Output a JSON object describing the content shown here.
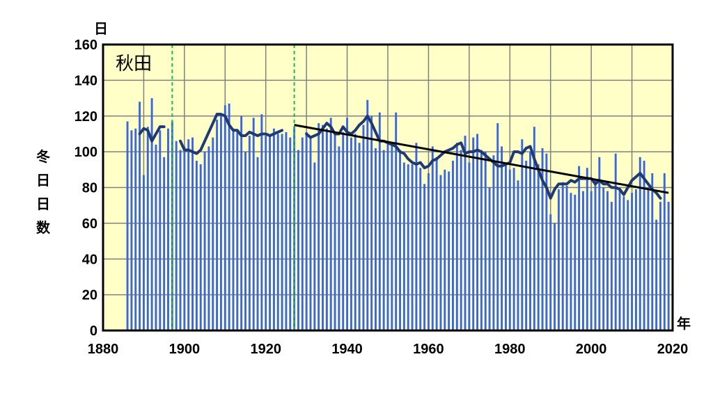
{
  "chart_data": {
    "type": "bar",
    "title": "",
    "station_label": "秋田",
    "y_unit_label": "日",
    "ylabel": "冬日日数",
    "xlabel": "年",
    "xlim": [
      1880,
      2020
    ],
    "ylim": [
      0,
      160
    ],
    "x_ticks": [
      "1880",
      "1900",
      "1920",
      "1940",
      "1960",
      "1980",
      "2000",
      "2020"
    ],
    "y_ticks": [
      "0",
      "20",
      "40",
      "60",
      "80",
      "100",
      "120",
      "140",
      "160"
    ],
    "grid": true,
    "colors": {
      "plot_background": "#FFFFC8",
      "grid": "#808080",
      "bars": "#3A67E0",
      "moving_average": "#1F3A73",
      "trend": "#000000",
      "station_change_lines": "#1DB954"
    },
    "station_change_years": [
      1897,
      1927
    ],
    "series": [
      {
        "type": "bar",
        "x": [
          1886,
          1887,
          1888,
          1889,
          1890,
          1891,
          1892,
          1893,
          1894,
          1895,
          1896,
          1897,
          1898,
          1899,
          1900,
          1901,
          1902,
          1903,
          1904,
          1905,
          1906,
          1907,
          1908,
          1909,
          1910,
          1911,
          1912,
          1913,
          1914,
          1915,
          1916,
          1917,
          1918,
          1919,
          1920,
          1921,
          1922,
          1923,
          1924,
          1925,
          1926,
          1927,
          1928,
          1929,
          1930,
          1931,
          1932,
          1933,
          1934,
          1935,
          1936,
          1937,
          1938,
          1939,
          1940,
          1941,
          1942,
          1943,
          1944,
          1945,
          1946,
          1947,
          1948,
          1949,
          1950,
          1951,
          1952,
          1953,
          1954,
          1955,
          1956,
          1957,
          1958,
          1959,
          1960,
          1961,
          1962,
          1963,
          1964,
          1965,
          1966,
          1967,
          1968,
          1969,
          1970,
          1971,
          1972,
          1973,
          1974,
          1975,
          1976,
          1977,
          1978,
          1979,
          1980,
          1981,
          1982,
          1983,
          1984,
          1985,
          1986,
          1987,
          1988,
          1989,
          1990,
          1991,
          1992,
          1993,
          1994,
          1995,
          1996,
          1997,
          1998,
          1999,
          2000,
          2001,
          2002,
          2003,
          2004,
          2005,
          2006,
          2007,
          2008,
          2009,
          2010,
          2011,
          2012,
          2013,
          2014,
          2015,
          2016,
          2017,
          2018,
          2019
        ],
        "values": [
          117,
          112,
          113,
          128,
          87,
          114,
          130,
          104,
          112,
          97,
          113,
          117,
          106,
          101,
          103,
          107,
          108,
          95,
          93,
          100,
          103,
          108,
          118,
          121,
          126,
          127,
          113,
          112,
          120,
          100,
          109,
          119,
          97,
          121,
          109,
          110,
          113,
          110,
          110,
          111,
          108,
          114,
          101,
          108,
          111,
          109,
          94,
          116,
          115,
          113,
          119,
          110,
          103,
          111,
          119,
          108,
          110,
          105,
          115,
          129,
          120,
          102,
          122,
          101,
          106,
          104,
          122,
          101,
          94,
          93,
          93,
          105,
          91,
          82,
          88,
          103,
          97,
          87,
          90,
          89,
          95,
          105,
          101,
          109,
          94,
          108,
          110,
          101,
          100,
          80,
          98,
          116,
          103,
          93,
          90,
          91,
          84,
          107,
          95,
          100,
          114,
          93,
          102,
          99,
          65,
          60,
          79,
          83,
          81,
          77,
          76,
          92,
          78,
          91,
          78,
          84,
          97,
          80,
          78,
          72,
          99,
          80,
          75,
          73,
          77,
          79,
          97,
          95,
          80,
          88,
          62,
          72,
          88,
          72
        ],
        "bar_width_years": 0.5
      },
      {
        "type": "line",
        "segments": [
          {
            "x": [
              1889,
              1890,
              1891,
              1892,
              1893,
              1894,
              1895
            ],
            "values": [
              110,
              113,
              112,
              106,
              110,
              114,
              114
            ]
          },
          {
            "x": [
              1899,
              1900,
              1901,
              1902,
              1903,
              1904,
              1905,
              1906,
              1907,
              1908,
              1909,
              1910,
              1911,
              1912,
              1913,
              1914,
              1915,
              1916,
              1917,
              1918,
              1919,
              1920,
              1921,
              1922,
              1923,
              1924
            ],
            "values": [
              106,
              101,
              101,
              100,
              99,
              101,
              106,
              111,
              116,
              121,
              121,
              120,
              115,
              112,
              112,
              109,
              109,
              111,
              110,
              109,
              110,
              110,
              109,
              110,
              111,
              112
            ]
          },
          {
            "x": [
              1930,
              1931,
              1932,
              1933,
              1934,
              1935,
              1936,
              1937,
              1938,
              1939,
              1940,
              1941,
              1942,
              1943,
              1944,
              1945,
              1946,
              1947,
              1948,
              1949,
              1950,
              1951,
              1952,
              1953,
              1954,
              1955,
              1956,
              1957,
              1958,
              1959,
              1960,
              1961,
              1962,
              1963,
              1964,
              1965,
              1966,
              1967,
              1968,
              1969,
              1970,
              1971,
              1972,
              1973,
              1974,
              1975,
              1976,
              1977,
              1978,
              1979,
              1980,
              1981,
              1982,
              1983,
              1984,
              1985,
              1986,
              1987,
              1988,
              1989,
              1990,
              1991,
              1992,
              1993,
              1994,
              1995,
              1996,
              1997,
              1998,
              1999,
              2000,
              2001,
              2002,
              2003,
              2004,
              2005,
              2006,
              2007,
              2008,
              2009,
              2010,
              2011,
              2012,
              2013,
              2014,
              2015,
              2016,
              2017
            ],
            "values": [
              110,
              108,
              109,
              110,
              113,
              116,
              114,
              110,
              110,
              114,
              111,
              110,
              112,
              115,
              117,
              120,
              116,
              111,
              106,
              106,
              105,
              104,
              103,
              100,
              99,
              96,
              94,
              93,
              94,
              91,
              92,
              95,
              96,
              98,
              100,
              101,
              102,
              104,
              105,
              99,
              100,
              100,
              101,
              100,
              98,
              96,
              94,
              92,
              92,
              93,
              94,
              100,
              100,
              99,
              102,
              103,
              96,
              90,
              84,
              80,
              74,
              79,
              82,
              82,
              82,
              84,
              83,
              85,
              85,
              85,
              85,
              82,
              84,
              82,
              82,
              80,
              80,
              79,
              76,
              80,
              84,
              86,
              88,
              85,
              82,
              79,
              77,
              74
            ]
          }
        ]
      },
      {
        "type": "line",
        "x": [
          1927,
          2019
        ],
        "values": [
          115,
          77
        ]
      }
    ]
  }
}
